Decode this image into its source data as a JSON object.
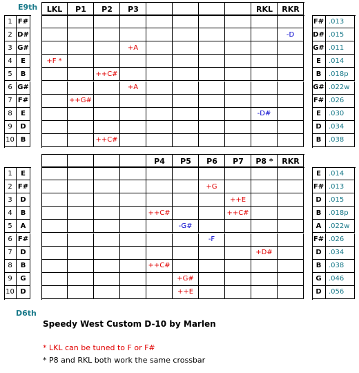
{
  "labels": {
    "top_tuning": "E9th",
    "bottom_tuning": "D6th"
  },
  "e9": {
    "headers": [
      "LKL",
      "P1",
      "P2",
      "P3",
      "",
      "",
      "",
      "",
      "RKL",
      "RKR"
    ],
    "strings": [
      {
        "num": "1",
        "note": "F#",
        "gauge": ".013",
        "changes": [
          "",
          "",
          "",
          "",
          "",
          "",
          "",
          "",
          "",
          ""
        ]
      },
      {
        "num": "2",
        "note": "D#",
        "gauge": ".015",
        "changes": [
          "",
          "",
          "",
          "",
          "",
          "",
          "",
          "",
          "",
          "-D"
        ]
      },
      {
        "num": "3",
        "note": "G#",
        "gauge": ".011",
        "changes": [
          "",
          "",
          "",
          "+A",
          "",
          "",
          "",
          "",
          "",
          ""
        ]
      },
      {
        "num": "4",
        "note": "E",
        "gauge": ".014",
        "changes": [
          "+F *",
          "",
          "",
          "",
          "",
          "",
          "",
          "",
          "",
          ""
        ]
      },
      {
        "num": "5",
        "note": "B",
        "gauge": ".018p",
        "changes": [
          "",
          "",
          "++C#",
          "",
          "",
          "",
          "",
          "",
          "",
          ""
        ]
      },
      {
        "num": "6",
        "note": "G#",
        "gauge": ".022w",
        "changes": [
          "",
          "",
          "",
          "+A",
          "",
          "",
          "",
          "",
          "",
          ""
        ]
      },
      {
        "num": "7",
        "note": "F#",
        "gauge": ".026",
        "changes": [
          "",
          "++G#",
          "",
          "",
          "",
          "",
          "",
          "",
          "",
          ""
        ]
      },
      {
        "num": "8",
        "note": "E",
        "gauge": ".030",
        "changes": [
          "",
          "",
          "",
          "",
          "",
          "",
          "",
          "",
          "-D#",
          ""
        ]
      },
      {
        "num": "9",
        "note": "D",
        "gauge": ".034",
        "changes": [
          "",
          "",
          "",
          "",
          "",
          "",
          "",
          "",
          "",
          ""
        ]
      },
      {
        "num": "10",
        "note": "B",
        "gauge": ".038",
        "changes": [
          "",
          "",
          "++C#",
          "",
          "",
          "",
          "",
          "",
          "",
          ""
        ]
      }
    ],
    "colors": [
      [
        "",
        "",
        "",
        "",
        "",
        "",
        "",
        "",
        "",
        ""
      ],
      [
        "",
        "",
        "",
        "",
        "",
        "",
        "",
        "",
        "",
        "blue"
      ],
      [
        "",
        "",
        "",
        "red",
        "",
        "",
        "",
        "",
        "",
        ""
      ],
      [
        "red",
        "",
        "",
        "",
        "",
        "",
        "",
        "",
        "",
        ""
      ],
      [
        "",
        "",
        "red",
        "",
        "",
        "",
        "",
        "",
        "",
        ""
      ],
      [
        "",
        "",
        "",
        "red",
        "",
        "",
        "",
        "",
        "",
        ""
      ],
      [
        "",
        "red",
        "",
        "",
        "",
        "",
        "",
        "",
        "",
        ""
      ],
      [
        "",
        "",
        "",
        "",
        "",
        "",
        "",
        "",
        "blue",
        ""
      ],
      [
        "",
        "",
        "",
        "",
        "",
        "",
        "",
        "",
        "",
        ""
      ],
      [
        "",
        "",
        "red",
        "",
        "",
        "",
        "",
        "",
        "",
        ""
      ]
    ]
  },
  "d6": {
    "headers": [
      "",
      "",
      "",
      "",
      "P4",
      "P5",
      "P6",
      "P7",
      "P8 *",
      "RKR"
    ],
    "strings": [
      {
        "num": "1",
        "note": "E",
        "gauge": ".014",
        "changes": [
          "",
          "",
          "",
          "",
          "",
          "",
          "",
          "",
          "",
          ""
        ]
      },
      {
        "num": "2",
        "note": "F#",
        "gauge": ".013",
        "changes": [
          "",
          "",
          "",
          "",
          "",
          "",
          "+G",
          "",
          "",
          ""
        ]
      },
      {
        "num": "3",
        "note": "D",
        "gauge": ".015",
        "changes": [
          "",
          "",
          "",
          "",
          "",
          "",
          "",
          "++E",
          "",
          ""
        ]
      },
      {
        "num": "4",
        "note": "B",
        "gauge": ".018p",
        "changes": [
          "",
          "",
          "",
          "",
          "++C#",
          "",
          "",
          "++C#",
          "",
          ""
        ]
      },
      {
        "num": "5",
        "note": "A",
        "gauge": ".022w",
        "changes": [
          "",
          "",
          "",
          "",
          "",
          "-G#",
          "",
          "",
          "",
          ""
        ]
      },
      {
        "num": "6",
        "note": "F#",
        "gauge": ".026",
        "changes": [
          "",
          "",
          "",
          "",
          "",
          "",
          "-F",
          "",
          "",
          ""
        ]
      },
      {
        "num": "7",
        "note": "D",
        "gauge": ".034",
        "changes": [
          "",
          "",
          "",
          "",
          "",
          "",
          "",
          "",
          "+D#",
          ""
        ]
      },
      {
        "num": "8",
        "note": "B",
        "gauge": ".038",
        "changes": [
          "",
          "",
          "",
          "",
          "++C#",
          "",
          "",
          "",
          "",
          ""
        ]
      },
      {
        "num": "9",
        "note": "G",
        "gauge": ".046",
        "changes": [
          "",
          "",
          "",
          "",
          "",
          "+G#",
          "",
          "",
          "",
          ""
        ]
      },
      {
        "num": "10",
        "note": "D",
        "gauge": ".056",
        "changes": [
          "",
          "",
          "",
          "",
          "",
          "++E",
          "",
          "",
          "",
          ""
        ]
      }
    ],
    "colors": [
      [
        "",
        "",
        "",
        "",
        "",
        "",
        "",
        "",
        "",
        ""
      ],
      [
        "",
        "",
        "",
        "",
        "",
        "",
        "red",
        "",
        "",
        ""
      ],
      [
        "",
        "",
        "",
        "",
        "",
        "",
        "",
        "red",
        "",
        ""
      ],
      [
        "",
        "",
        "",
        "",
        "red",
        "",
        "",
        "red",
        "",
        ""
      ],
      [
        "",
        "",
        "",
        "",
        "",
        "blue",
        "",
        "",
        "",
        ""
      ],
      [
        "",
        "",
        "",
        "",
        "",
        "",
        "blue",
        "",
        "",
        ""
      ],
      [
        "",
        "",
        "",
        "",
        "",
        "",
        "",
        "",
        "red",
        ""
      ],
      [
        "",
        "",
        "",
        "",
        "red",
        "",
        "",
        "",
        "",
        ""
      ],
      [
        "",
        "",
        "",
        "",
        "",
        "red",
        "",
        "",
        "",
        ""
      ],
      [
        "",
        "",
        "",
        "",
        "",
        "red",
        "",
        "",
        "",
        ""
      ]
    ]
  },
  "title": "Speedy West Custom D-10 by Marlen",
  "footnotes": {
    "note1": "* LKL can be tuned to F or F#",
    "note2": "* P8 and RKL both work the same crossbar"
  },
  "accent_colors": {
    "teal": "#1a7a8a",
    "red": "#e00000",
    "blue": "#0000cc"
  }
}
